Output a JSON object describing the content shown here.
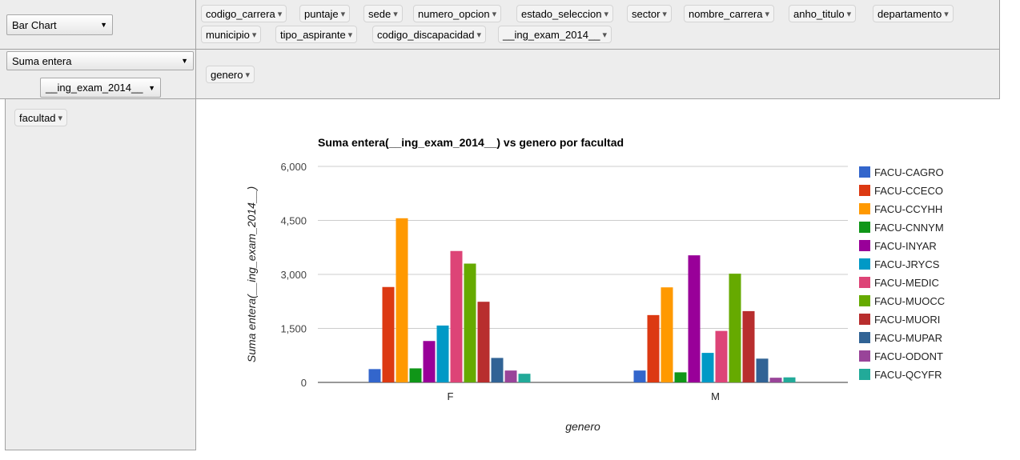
{
  "controls": {
    "renderer": "Bar Chart",
    "aggregator": "Suma entera",
    "aggregator_field": "__ing_exam_2014__"
  },
  "unused_fields": [
    "codigo_carrera",
    "puntaje",
    "sede",
    "numero_opcion",
    "estado_seleccion",
    "sector",
    "nombre_carrera",
    "anho_titulo",
    "departamento",
    "municipio",
    "tipo_aspirante",
    "codigo_discapacidad",
    "__ing_exam_2014__"
  ],
  "column_fields": [
    "genero"
  ],
  "row_fields": [
    "facultad"
  ],
  "icons": {
    "dropdown": "triangle-down-icon"
  },
  "chart_data": {
    "type": "bar",
    "title": "Suma entera(__ing_exam_2014__) vs genero por facultad",
    "xlabel": "genero",
    "ylabel": "Suma entera(__ing_exam_2014__)",
    "categories": [
      "F",
      "M"
    ],
    "ylim": [
      0,
      6000
    ],
    "yticks": [
      0,
      1500,
      3000,
      4500,
      6000
    ],
    "ytick_labels": [
      "0",
      "1,500",
      "3,000",
      "4,500",
      "6,000"
    ],
    "grid": true,
    "legend_position": "right",
    "series": [
      {
        "name": "FACU-CAGRO",
        "color": "#3366cc",
        "values": [
          370,
          330
        ]
      },
      {
        "name": "FACU-CCECO",
        "color": "#dc3912",
        "values": [
          2650,
          1870
        ]
      },
      {
        "name": "FACU-CCYHH",
        "color": "#ff9900",
        "values": [
          4560,
          2640
        ]
      },
      {
        "name": "FACU-CNNYM",
        "color": "#109618",
        "values": [
          390,
          280
        ]
      },
      {
        "name": "FACU-INYAR",
        "color": "#990099",
        "values": [
          1150,
          3530
        ]
      },
      {
        "name": "FACU-JRYCS",
        "color": "#0099c6",
        "values": [
          1580,
          820
        ]
      },
      {
        "name": "FACU-MEDIC",
        "color": "#dd4477",
        "values": [
          3650,
          1430
        ]
      },
      {
        "name": "FACU-MUOCC",
        "color": "#66aa00",
        "values": [
          3300,
          3020
        ]
      },
      {
        "name": "FACU-MUORI",
        "color": "#b82e2e",
        "values": [
          2240,
          1980
        ]
      },
      {
        "name": "FACU-MUPAR",
        "color": "#316395",
        "values": [
          680,
          660
        ]
      },
      {
        "name": "FACU-ODONT",
        "color": "#994499",
        "values": [
          330,
          130
        ]
      },
      {
        "name": "FACU-QCYFR",
        "color": "#22aa99",
        "values": [
          240,
          140
        ]
      }
    ]
  }
}
